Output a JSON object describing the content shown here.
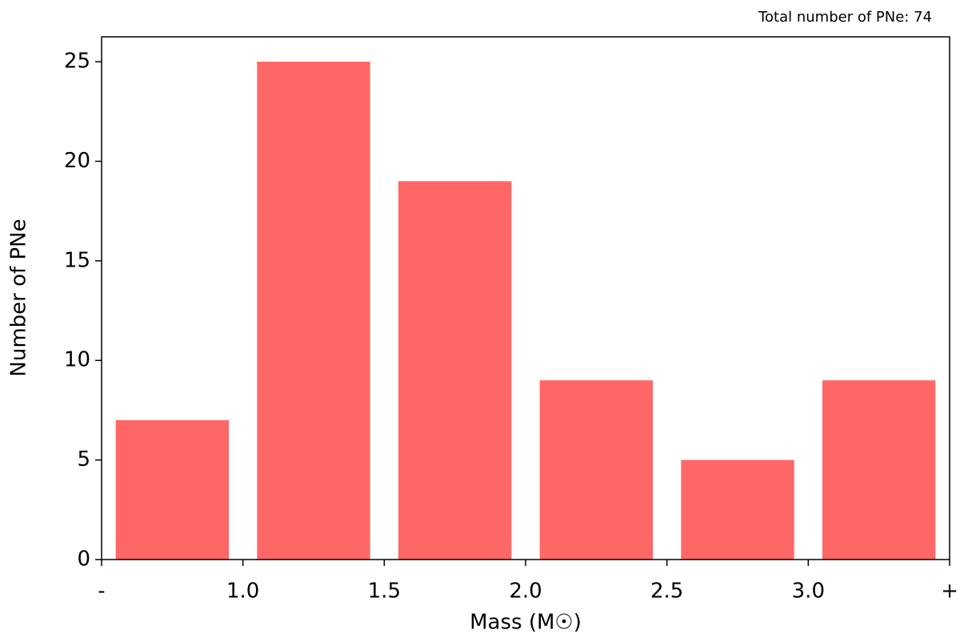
{
  "chart_data": {
    "type": "histogram",
    "title": "Total number of PNe: 74",
    "xlabel": "Mass (M☉)",
    "ylabel": "Number of PNe",
    "bins": [
      "-",
      "1.0",
      "1.5",
      "2.0",
      "2.5",
      "3.0",
      "+"
    ],
    "values": [
      7,
      25,
      19,
      9,
      5,
      9
    ],
    "color": "#ff6666",
    "ylim": [
      0,
      26.25
    ],
    "yticks": [
      0,
      5,
      10,
      15,
      20,
      25
    ]
  }
}
